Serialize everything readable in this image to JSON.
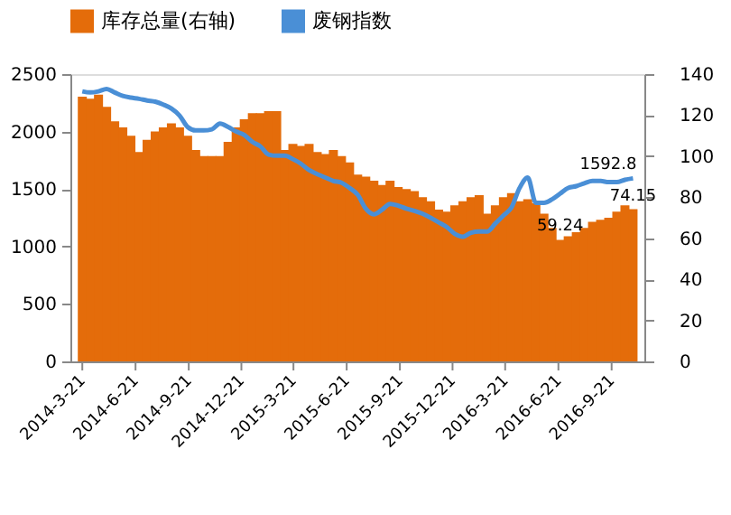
{
  "chart_data": {
    "type": "bar",
    "legend": "top",
    "grid": false,
    "x": [
      "2014-03-21",
      "2014-04-04",
      "2014-04-18",
      "2014-05-02",
      "2014-05-16",
      "2014-05-30",
      "2014-06-13",
      "2014-06-27",
      "2014-07-11",
      "2014-07-25",
      "2014-08-08",
      "2014-08-22",
      "2014-09-05",
      "2014-09-19",
      "2014-10-03",
      "2014-10-17",
      "2014-10-31",
      "2014-11-14",
      "2014-11-28",
      "2014-12-12",
      "2014-12-26",
      "2015-01-09",
      "2015-01-23",
      "2015-02-06",
      "2015-02-20",
      "2015-03-06",
      "2015-03-20",
      "2015-04-03",
      "2015-04-17",
      "2015-05-01",
      "2015-05-15",
      "2015-05-29",
      "2015-06-12",
      "2015-06-26",
      "2015-07-10",
      "2015-07-24",
      "2015-08-07",
      "2015-08-21",
      "2015-09-04",
      "2015-09-18",
      "2015-10-02",
      "2015-10-16",
      "2015-10-30",
      "2015-11-13",
      "2015-11-27",
      "2015-12-11",
      "2015-12-25",
      "2016-01-08",
      "2016-01-22",
      "2016-02-05",
      "2016-02-19",
      "2016-03-04",
      "2016-03-18",
      "2016-04-01",
      "2016-04-15",
      "2016-04-29",
      "2016-05-13",
      "2016-05-27",
      "2016-06-10",
      "2016-06-24",
      "2016-07-08",
      "2016-07-22",
      "2016-08-05",
      "2016-08-19",
      "2016-09-02",
      "2016-09-16",
      "2016-09-30",
      "2016-10-14",
      "2016-10-28"
    ],
    "series": [
      {
        "name": "库存总量(右轴)",
        "axis": "y2",
        "color": "#e46c0a",
        "values": [
          129,
          128,
          130,
          124,
          117,
          114,
          110,
          102,
          108,
          112,
          114,
          116,
          114,
          110,
          103,
          100,
          100,
          100,
          107,
          114,
          118,
          121,
          121,
          122,
          122,
          103,
          106,
          105,
          106,
          102,
          101,
          103,
          100,
          97,
          91,
          90,
          88,
          86,
          88,
          85,
          84,
          83,
          80,
          78,
          74,
          73,
          76,
          78,
          80,
          81,
          72,
          76,
          80,
          82,
          78,
          79,
          77,
          72,
          65,
          59.24,
          61,
          63,
          65,
          68,
          69,
          70,
          73,
          76,
          74.15
        ],
        "value_labels": [
          null,
          null,
          null,
          null,
          null,
          null,
          null,
          null,
          null,
          null,
          null,
          null,
          null,
          null,
          null,
          null,
          null,
          null,
          null,
          null,
          null,
          null,
          null,
          null,
          null,
          null,
          null,
          null,
          null,
          null,
          null,
          null,
          null,
          null,
          null,
          null,
          null,
          null,
          null,
          null,
          null,
          null,
          null,
          null,
          null,
          null,
          null,
          null,
          null,
          null,
          null,
          null,
          null,
          null,
          null,
          null,
          null,
          null,
          null,
          "59.24",
          null,
          null,
          null,
          null,
          null,
          null,
          null,
          null,
          "74.15"
        ]
      },
      {
        "name": "废钢指数",
        "type": "line",
        "color": "#4a8fd6",
        "values": [
          2350,
          2340,
          2350,
          2370,
          2340,
          2310,
          2295,
          2285,
          2270,
          2260,
          2235,
          2200,
          2140,
          2040,
          2010,
          2010,
          2020,
          2070,
          2040,
          2000,
          1970,
          1910,
          1870,
          1800,
          1790,
          1790,
          1760,
          1720,
          1665,
          1630,
          1600,
          1570,
          1555,
          1510,
          1450,
          1330,
          1280,
          1320,
          1370,
          1355,
          1330,
          1310,
          1285,
          1250,
          1210,
          1170,
          1110,
          1085,
          1120,
          1130,
          1130,
          1200,
          1270,
          1340,
          1510,
          1600,
          1380,
          1380,
          1410,
          1460,
          1510,
          1525,
          1550,
          1570,
          1570,
          1560,
          1560,
          1580,
          1592.8
        ],
        "value_labels": [
          null,
          null,
          null,
          null,
          null,
          null,
          null,
          null,
          null,
          null,
          null,
          null,
          null,
          null,
          null,
          null,
          null,
          null,
          null,
          null,
          null,
          null,
          null,
          null,
          null,
          null,
          null,
          null,
          null,
          null,
          null,
          null,
          null,
          null,
          null,
          null,
          null,
          null,
          null,
          null,
          null,
          null,
          null,
          null,
          null,
          null,
          null,
          null,
          null,
          null,
          null,
          null,
          null,
          null,
          null,
          null,
          null,
          null,
          null,
          null,
          null,
          null,
          null,
          null,
          null,
          null,
          null,
          null,
          "1592.8"
        ]
      }
    ],
    "xlim": [
      "2014-03-16",
      "2016-11-01"
    ],
    "xticks": [
      {
        "value": "2014-03-21",
        "label": "2014-3-21"
      },
      {
        "value": "2014-06-21",
        "label": "2014-6-21"
      },
      {
        "value": "2014-09-21",
        "label": "2014-9-21"
      },
      {
        "value": "2014-12-21",
        "label": "2014-12-21"
      },
      {
        "value": "2015-03-21",
        "label": "2015-3-21"
      },
      {
        "value": "2015-06-21",
        "label": "2015-6-21"
      },
      {
        "value": "2015-09-21",
        "label": "2015-9-21"
      },
      {
        "value": "2015-12-21",
        "label": "2015-12-21"
      },
      {
        "value": "2016-03-21",
        "label": "2016-3-21"
      },
      {
        "value": "2016-06-21",
        "label": "2016-6-21"
      },
      {
        "value": "2016-09-21",
        "label": "2016-9-21"
      }
    ],
    "ylim": [
      0,
      2500
    ],
    "yticks": [
      0,
      500,
      1000,
      1500,
      2000,
      2500
    ],
    "y2lim": [
      0,
      140
    ],
    "y2ticks": [
      0,
      20,
      40,
      60,
      80,
      100,
      120,
      140
    ]
  }
}
